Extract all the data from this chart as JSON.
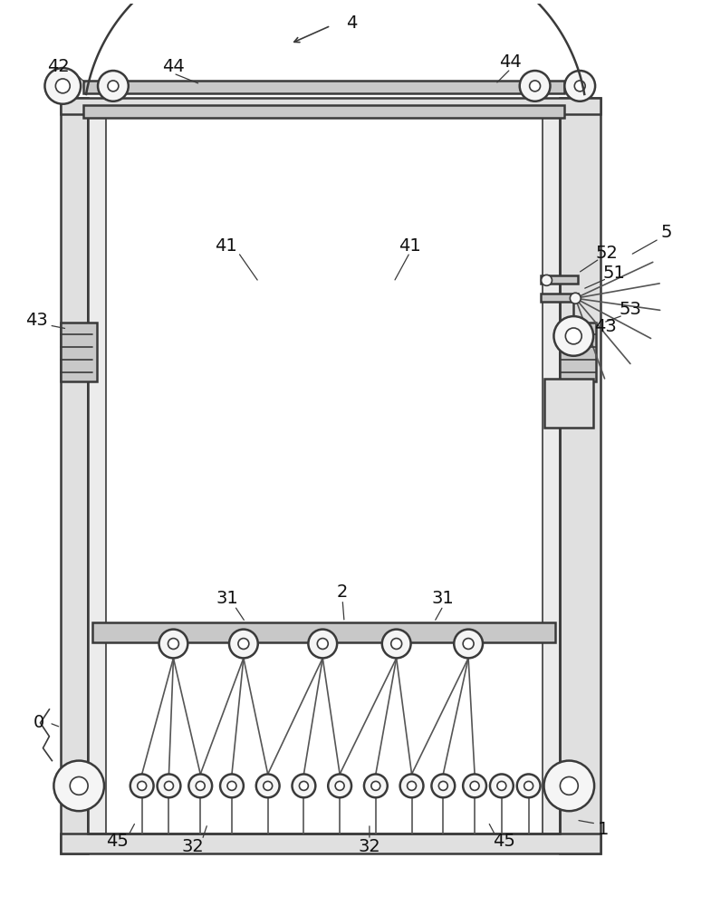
{
  "bg_color": "#ffffff",
  "lc": "#3a3a3a",
  "gray_fill": "#e0e0e0",
  "gray_mid": "#c8c8c8",
  "gray_dark": "#b0b0b0",
  "figsize": [
    7.85,
    10.0
  ],
  "dpi": 100
}
